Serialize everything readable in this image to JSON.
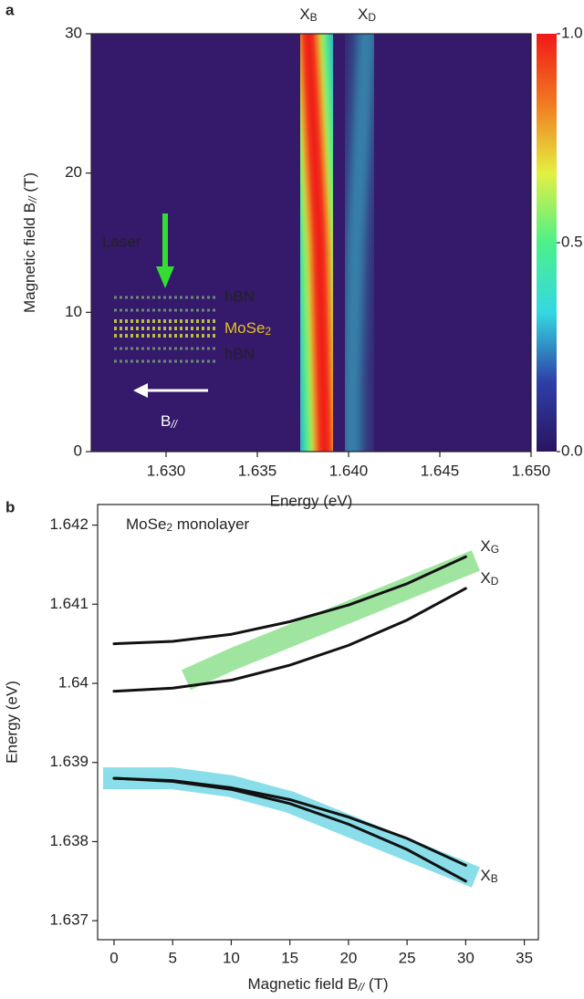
{
  "chart_data": [
    {
      "type": "heatmap",
      "panel_label": "a",
      "x_label": "Energy (eV)",
      "y_label": {
        "main": "Magnetic field B",
        "sub": "//",
        "tail": " (T)"
      },
      "xlim": [
        1.6259,
        1.65
      ],
      "xticks": [
        {
          "value": 1.63,
          "label": "1.630"
        },
        1.635,
        {
          "value": 1.64,
          "label": "1.640"
        },
        1.645,
        {
          "value": 1.65,
          "label": "1.650"
        }
      ],
      "ylim": [
        0,
        30
      ],
      "yticks": [
        0,
        10,
        20,
        30
      ],
      "background": "#35196b",
      "y": [
        0,
        5,
        10,
        15,
        20,
        25,
        30
      ],
      "series": [
        {
          "name": {
            "main": "X",
            "sub": "B"
          },
          "values": [
            1.6387,
            1.6386,
            1.6385,
            1.6384,
            1.6382,
            1.638,
            1.6378
          ]
        },
        {
          "name": {
            "main": "X",
            "sub": "D"
          },
          "values": [
            1.6402,
            1.6402,
            1.6403,
            1.6404,
            1.6406,
            1.6408,
            1.641
          ]
        }
      ],
      "colorbar": {
        "lim": [
          0,
          1
        ],
        "ticks": [
          {
            "value": 0,
            "label": "0.0"
          },
          0.5,
          {
            "value": 1,
            "label": "1.0"
          }
        ],
        "colormap": [
          "#2a1460",
          "#2e3fa8",
          "#34d8e0",
          "#4cf08a",
          "#e4f040",
          "#f07a20",
          "#f01818"
        ]
      },
      "inset": {
        "laser": "Laser",
        "layers": [
          "hBN",
          {
            "main": "MoSe",
            "sub": "2"
          },
          "hBN"
        ],
        "field": {
          "main": "B",
          "sub": "//"
        }
      }
    },
    {
      "type": "line",
      "panel_label": "b",
      "annotation": {
        "main": "MoSe",
        "sub": "2",
        "tail": " monolayer"
      },
      "x_label": {
        "main": "Magnetic field B",
        "sub": "//",
        "tail": " (T)"
      },
      "y_label": "Energy (eV)",
      "xlim": [
        -1.4,
        36.2
      ],
      "xticks": [
        0,
        5,
        10,
        15,
        20,
        25,
        30,
        35
      ],
      "ylim": [
        1.63676,
        1.64226
      ],
      "yticks": [
        1.637,
        1.638,
        1.639,
        1.64,
        1.641,
        1.642
      ],
      "series": [
        {
          "style": "band",
          "color": "#5fd35f",
          "x": [
            7,
            10,
            15,
            20,
            25,
            30
          ],
          "values": [
            1.6401,
            1.6403,
            1.6406,
            1.6409,
            1.6412,
            1.6415
          ]
        },
        {
          "style": "band",
          "color": "#3cc8dc",
          "x": [
            0,
            5,
            10,
            15,
            20,
            25,
            30
          ],
          "values": [
            1.6388,
            1.6388,
            1.6387,
            1.6385,
            1.6382,
            1.6379,
            1.6376
          ],
          "name": {
            "main": "X",
            "sub": "B"
          }
        },
        {
          "style": "line",
          "color": "#111111",
          "x": [
            0,
            5,
            10,
            15,
            20,
            25,
            30
          ],
          "values": [
            1.6405,
            1.64053,
            1.64062,
            1.64078,
            1.64099,
            1.64126,
            1.6416
          ],
          "name": {
            "main": "X",
            "sub": "G"
          }
        },
        {
          "style": "line",
          "color": "#111111",
          "x": [
            0,
            5,
            10,
            15,
            20,
            25,
            30
          ],
          "values": [
            1.6399,
            1.63994,
            1.64004,
            1.64023,
            1.64048,
            1.6408,
            1.6412
          ],
          "name": {
            "main": "X",
            "sub": "D"
          }
        },
        {
          "style": "line",
          "color": "#111111",
          "x": [
            0,
            5,
            10,
            15,
            20,
            25,
            30
          ],
          "values": [
            1.6388,
            1.63877,
            1.63868,
            1.63853,
            1.63831,
            1.63804,
            1.6377
          ]
        },
        {
          "style": "line",
          "color": "#111111",
          "x": [
            0,
            5,
            10,
            15,
            20,
            25,
            30
          ],
          "values": [
            1.6388,
            1.63876,
            1.63866,
            1.63848,
            1.63822,
            1.6379,
            1.6375
          ]
        }
      ]
    }
  ]
}
